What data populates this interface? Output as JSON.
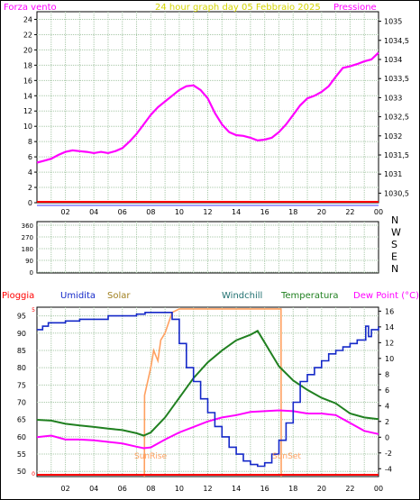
{
  "colors": {
    "frame": "#000000",
    "grid": "#a8c8a8",
    "pressure": "#ff00ff",
    "title": "#d4d400",
    "red": "#ff0000",
    "rain_label": "#ff0000",
    "humidity": "#1428c8",
    "solar": "#ffa060",
    "solar_label": "#a08020",
    "windchill": "#207070",
    "temperature": "#208020",
    "dewpoint": "#ff00ff",
    "axis_text": "#000000",
    "sun_text": "#ffa060"
  },
  "top": {
    "title": "24 hour graph day   05 Febbraio 2025",
    "left_label": "Forza vento",
    "right_label": "Pressione",
    "x_ticks": [
      "02",
      "04",
      "06",
      "08",
      "10",
      "12",
      "14",
      "16",
      "18",
      "20",
      "22",
      "00"
    ],
    "left_ticks": [
      "0",
      "2",
      "4",
      "6",
      "8",
      "10",
      "12",
      "14",
      "16",
      "18",
      "20",
      "22",
      "24"
    ],
    "right_ticks": [
      "1030,5",
      "1031",
      "1031,5",
      "1032",
      "1032,5",
      "1033",
      "1033,5",
      "1034",
      "1034,5",
      "1035"
    ]
  },
  "mid": {
    "left_ticks": [
      "0",
      "90",
      "180",
      "270",
      "360"
    ],
    "right_letters": [
      "N",
      "W",
      "S",
      "E",
      "N"
    ]
  },
  "bottom": {
    "labels": {
      "rain": "Pioggia",
      "humidity": "Umidita",
      "solar": "Solar",
      "windchill": "Windchill",
      "temperature": "Temperatura",
      "dewpoint": "Dew Point (°C)"
    },
    "x_ticks": [
      "02",
      "04",
      "06",
      "08",
      "10",
      "12",
      "14",
      "16",
      "18",
      "20",
      "22",
      "00"
    ],
    "left_ticks": [
      "50",
      "55",
      "60",
      "65",
      "70",
      "75",
      "80",
      "85",
      "90",
      "95"
    ],
    "left_small": [
      "0",
      "5"
    ],
    "right_ticks": [
      "-4",
      "-2",
      "0",
      "2",
      "4",
      "6",
      "8",
      "10",
      "12",
      "14",
      "16"
    ],
    "sunrise": "SunRise",
    "sunset": "SunSet"
  },
  "chart_data": [
    {
      "type": "line",
      "title": "24 hour graph day   05 Febbraio 2025",
      "xlabel": "",
      "ylabel": "Forza vento",
      "y2label": "Pressione",
      "xlim": [
        0,
        24
      ],
      "ylim": [
        0,
        25
      ],
      "y2lim": [
        1030.25,
        1035.25
      ],
      "series": [
        {
          "name": "Pressione",
          "axis": "right",
          "x": [
            0,
            0.5,
            1,
            1.5,
            2,
            2.5,
            3,
            3.5,
            4,
            4.5,
            5,
            5.5,
            6,
            6.5,
            7,
            7.5,
            8,
            8.5,
            9,
            9.5,
            10,
            10.5,
            11,
            11.5,
            12,
            12.5,
            13,
            13.5,
            14,
            14.5,
            15,
            15.5,
            16,
            16.5,
            17,
            17.5,
            18,
            18.5,
            19,
            19.5,
            20,
            20.5,
            21,
            21.5,
            22,
            22.5,
            23,
            23.5,
            24
          ],
          "y": [
            1031.3,
            1031.35,
            1031.4,
            1031.5,
            1031.58,
            1031.62,
            1031.6,
            1031.58,
            1031.55,
            1031.58,
            1031.55,
            1031.6,
            1031.68,
            1031.85,
            1032.05,
            1032.3,
            1032.55,
            1032.75,
            1032.9,
            1033.05,
            1033.2,
            1033.3,
            1033.32,
            1033.2,
            1032.98,
            1032.6,
            1032.3,
            1032.1,
            1032.02,
            1032.0,
            1031.95,
            1031.88,
            1031.9,
            1031.95,
            1032.1,
            1032.3,
            1032.55,
            1032.8,
            1032.98,
            1033.05,
            1033.15,
            1033.3,
            1033.55,
            1033.78,
            1033.82,
            1033.88,
            1033.95,
            1034.0,
            1034.18
          ]
        },
        {
          "name": "Forza vento",
          "axis": "left",
          "x": [
            0,
            24
          ],
          "y": [
            0,
            0
          ]
        }
      ]
    },
    {
      "type": "line",
      "title": "",
      "xlabel": "",
      "ylabel": "",
      "xlim": [
        0,
        24
      ],
      "ylim": [
        0,
        360
      ],
      "series": []
    },
    {
      "type": "line",
      "title": "",
      "xlim": [
        0,
        24
      ],
      "ylim": [
        48.5,
        97.5
      ],
      "y2lim": [
        -5,
        16.5
      ],
      "sunrise": 7.55,
      "sunset": 17.15,
      "series": [
        {
          "name": "Umidita",
          "axis": "left",
          "x": [
            0,
            0.4,
            0.8,
            1.5,
            2,
            3,
            4,
            5,
            6,
            7,
            7.5,
            7.6,
            8,
            8.5,
            9,
            9.5,
            10,
            10.5,
            11,
            11.5,
            12,
            12.5,
            13,
            13.5,
            14,
            14.5,
            15,
            15.5,
            16,
            16.5,
            17,
            17.5,
            18,
            18.5,
            19,
            19.5,
            20,
            20.5,
            21,
            21.5,
            22,
            22.5,
            23,
            23.1,
            23.3,
            23.5,
            24
          ],
          "y": [
            91,
            92,
            93,
            93,
            93.5,
            94,
            94,
            95,
            95,
            95.5,
            95.5,
            96,
            96,
            96,
            96,
            94,
            87,
            80,
            76,
            71,
            67,
            63,
            60,
            57,
            55,
            53,
            52,
            51.5,
            52.5,
            55,
            59,
            64,
            70,
            76,
            78,
            80,
            82,
            84,
            85,
            86,
            87,
            88,
            88,
            92,
            89,
            91,
            92
          ]
        },
        {
          "name": "Solar",
          "axis": "left",
          "x": [
            7.55,
            7.56,
            8,
            8.2,
            8.5,
            8.7,
            9,
            9.5,
            10,
            17.15,
            17.16
          ],
          "y": [
            48.5,
            72,
            80,
            85,
            82,
            88,
            90,
            96,
            97,
            97,
            48.5
          ]
        },
        {
          "name": "Temperatura",
          "axis": "right",
          "x": [
            0,
            1,
            2,
            3,
            4,
            5,
            6,
            7,
            7.5,
            8,
            9,
            10,
            11,
            12,
            13,
            14,
            15,
            15.5,
            16,
            16.5,
            17,
            18,
            19,
            20,
            21,
            22,
            23,
            24
          ],
          "y": [
            2.2,
            2.1,
            1.7,
            1.5,
            1.3,
            1.1,
            0.9,
            0.5,
            0.2,
            0.6,
            2.5,
            5,
            7.5,
            9.5,
            11,
            12.3,
            13,
            13.5,
            12,
            10.5,
            9,
            7.2,
            6,
            5,
            4.3,
            3,
            2.5,
            2.3
          ]
        },
        {
          "name": "Dew Point (°C)",
          "axis": "right",
          "x": [
            0,
            1,
            2,
            3,
            4,
            5,
            6,
            7,
            7.5,
            8,
            9,
            10,
            11,
            12,
            13,
            14,
            15,
            16,
            17,
            18,
            19,
            20,
            21,
            22,
            23,
            24
          ],
          "y": [
            0,
            0.2,
            -0.3,
            -0.3,
            -0.4,
            -0.6,
            -0.8,
            -1.2,
            -1.4,
            -1.3,
            -0.3,
            0.6,
            1.3,
            2,
            2.5,
            2.8,
            3.2,
            3.3,
            3.4,
            3.3,
            3,
            3,
            2.8,
            1.8,
            0.8,
            0.4
          ]
        },
        {
          "name": "Pioggia",
          "axis": "left",
          "x": [
            0,
            24
          ],
          "y": [
            48.5,
            48.5
          ]
        }
      ]
    }
  ]
}
